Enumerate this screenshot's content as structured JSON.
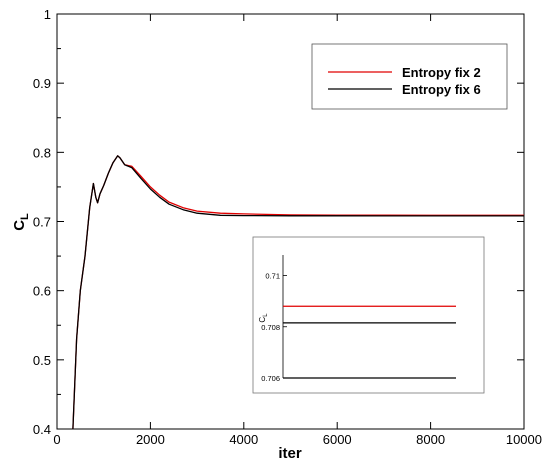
{
  "chart_data": [
    {
      "type": "line",
      "xlabel": "iter",
      "ylabel": "C_L",
      "ylabel_main": "C",
      "ylabel_sub": "L",
      "xlim": [
        0,
        10000
      ],
      "ylim": [
        0.4,
        1
      ],
      "xticks": [
        0,
        2000,
        4000,
        6000,
        8000,
        10000
      ],
      "xtick_labels": [
        "0",
        "2000",
        "4000",
        "6000",
        "8000",
        "10000"
      ],
      "yticks": [
        0.4,
        0.5,
        0.6,
        0.7,
        0.8,
        0.9,
        1
      ],
      "ytick_labels": [
        "0.4",
        "0.5",
        "0.6",
        "0.7",
        "0.8",
        "0.9",
        "1"
      ],
      "grid": false,
      "legend_position": "top-right",
      "series": [
        {
          "name": "Entropy fix 2",
          "color": "#e00000",
          "x": [
            340,
            420,
            500,
            600,
            700,
            780,
            830,
            870,
            920,
            1000,
            1100,
            1200,
            1300,
            1350,
            1450,
            1600,
            1800,
            2000,
            2200,
            2400,
            2700,
            3000,
            3500,
            4000,
            5000,
            6000,
            7000,
            8000,
            9000,
            10000
          ],
          "y": [
            0.4,
            0.53,
            0.6,
            0.65,
            0.72,
            0.755,
            0.735,
            0.727,
            0.74,
            0.752,
            0.77,
            0.785,
            0.795,
            0.792,
            0.782,
            0.78,
            0.765,
            0.75,
            0.738,
            0.728,
            0.72,
            0.715,
            0.712,
            0.711,
            0.7095,
            0.7092,
            0.7091,
            0.709,
            0.709,
            0.709
          ]
        },
        {
          "name": "Entropy fix 6",
          "color": "#000000",
          "x": [
            340,
            420,
            500,
            600,
            700,
            780,
            830,
            870,
            920,
            1000,
            1100,
            1200,
            1300,
            1350,
            1450,
            1600,
            1800,
            2000,
            2200,
            2400,
            2700,
            3000,
            3500,
            4000,
            5000,
            6000,
            7000,
            8000,
            9000,
            10000
          ],
          "y": [
            0.4,
            0.53,
            0.6,
            0.65,
            0.72,
            0.755,
            0.735,
            0.727,
            0.74,
            0.752,
            0.77,
            0.785,
            0.795,
            0.792,
            0.782,
            0.778,
            0.762,
            0.747,
            0.735,
            0.725,
            0.717,
            0.712,
            0.709,
            0.7085,
            0.7083,
            0.7082,
            0.7081,
            0.7081,
            0.7081,
            0.7081
          ]
        }
      ]
    },
    {
      "type": "line",
      "xlabel": "",
      "ylabel": "C_L",
      "ylabel_main": "C",
      "ylabel_sub": "L",
      "ylim": [
        0.706,
        0.7108
      ],
      "yticks": [
        0.706,
        0.708,
        0.71
      ],
      "ytick_labels": [
        "0.706",
        "0.708",
        "0.71"
      ],
      "series": [
        {
          "name": "Entropy fix 2",
          "color": "#e00000",
          "x": [
            0,
            1
          ],
          "y": [
            0.7088,
            0.7088
          ]
        },
        {
          "name": "Entropy fix 6",
          "color": "#000000",
          "x": [
            0,
            1
          ],
          "y": [
            0.70815,
            0.70815
          ]
        },
        {
          "color": "#000000",
          "x": [
            0,
            1
          ],
          "y": [
            0.706,
            0.706
          ]
        }
      ]
    }
  ]
}
